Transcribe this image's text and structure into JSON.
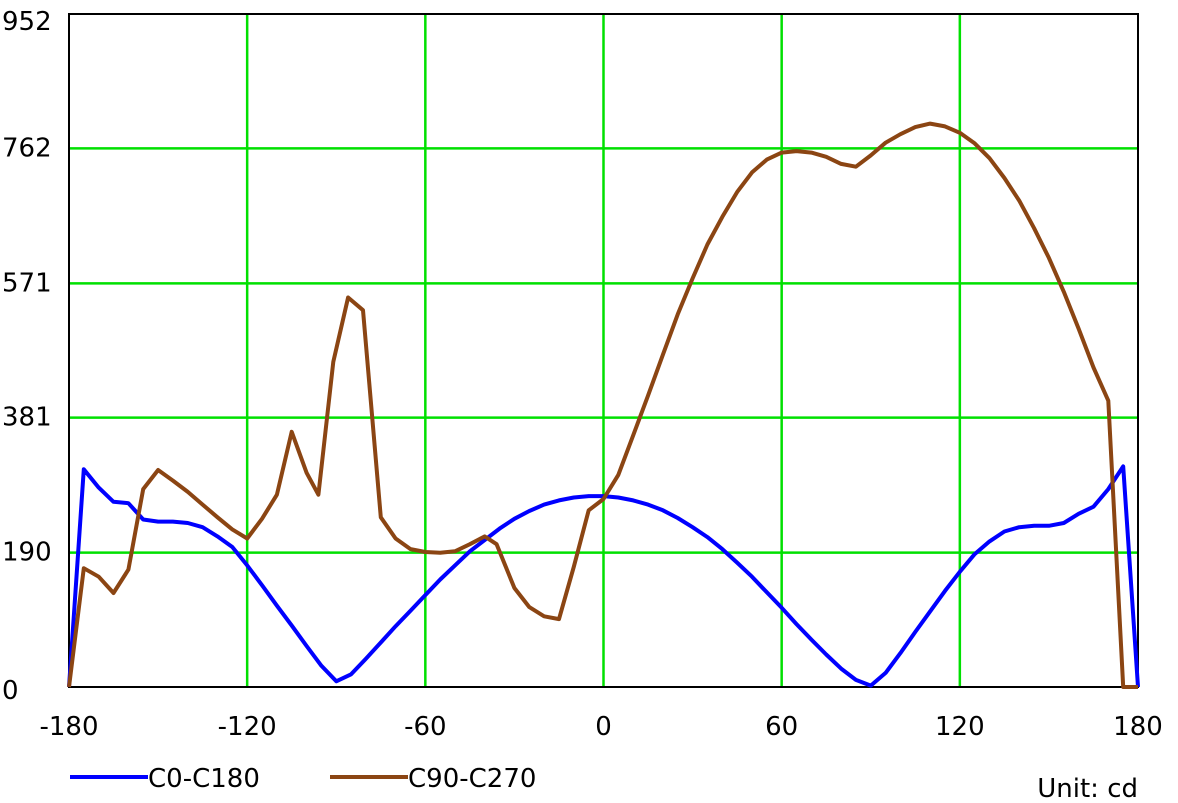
{
  "chart_data": {
    "type": "line",
    "xlim": [
      -180,
      180
    ],
    "ylim": [
      0,
      952
    ],
    "x_ticks": [
      -180,
      -120,
      -60,
      0,
      60,
      120,
      180
    ],
    "y_ticks": [
      0,
      190,
      381,
      571,
      762,
      952
    ],
    "x_tick_labels": [
      "-180",
      "-120",
      "-60",
      "0",
      "60",
      "120",
      "180"
    ],
    "y_tick_labels": [
      "0",
      "190",
      "381",
      "571",
      "762",
      "952"
    ],
    "grid": true,
    "grid_color": "#00e000",
    "unit_label": "Unit: cd",
    "legend_position": "bottom-left",
    "series": [
      {
        "name": "C0-C180",
        "color": "#0000ff",
        "points": [
          [
            -180,
            0
          ],
          [
            -175,
            308
          ],
          [
            -170,
            282
          ],
          [
            -165,
            262
          ],
          [
            -160,
            260
          ],
          [
            -155,
            237
          ],
          [
            -150,
            234
          ],
          [
            -145,
            234
          ],
          [
            -140,
            232
          ],
          [
            -135,
            226
          ],
          [
            -130,
            213
          ],
          [
            -125,
            198
          ],
          [
            -120,
            172
          ],
          [
            -115,
            144
          ],
          [
            -110,
            115
          ],
          [
            -105,
            87
          ],
          [
            -100,
            58
          ],
          [
            -95,
            30
          ],
          [
            -90,
            8
          ],
          [
            -85,
            18
          ],
          [
            -80,
            40
          ],
          [
            -75,
            63
          ],
          [
            -70,
            86
          ],
          [
            -65,
            108
          ],
          [
            -60,
            130
          ],
          [
            -55,
            152
          ],
          [
            -50,
            172
          ],
          [
            -45,
            192
          ],
          [
            -40,
            208
          ],
          [
            -35,
            224
          ],
          [
            -30,
            238
          ],
          [
            -25,
            249
          ],
          [
            -20,
            258
          ],
          [
            -15,
            264
          ],
          [
            -10,
            268
          ],
          [
            -5,
            270
          ],
          [
            0,
            270
          ],
          [
            5,
            268
          ],
          [
            10,
            264
          ],
          [
            15,
            258
          ],
          [
            20,
            250
          ],
          [
            25,
            239
          ],
          [
            30,
            226
          ],
          [
            35,
            212
          ],
          [
            40,
            195
          ],
          [
            45,
            176
          ],
          [
            50,
            156
          ],
          [
            55,
            134
          ],
          [
            60,
            112
          ],
          [
            65,
            89
          ],
          [
            70,
            67
          ],
          [
            75,
            46
          ],
          [
            80,
            26
          ],
          [
            85,
            10
          ],
          [
            90,
            2
          ],
          [
            95,
            20
          ],
          [
            100,
            48
          ],
          [
            105,
            78
          ],
          [
            110,
            107
          ],
          [
            115,
            136
          ],
          [
            120,
            163
          ],
          [
            125,
            188
          ],
          [
            130,
            206
          ],
          [
            135,
            220
          ],
          [
            140,
            226
          ],
          [
            145,
            228
          ],
          [
            150,
            228
          ],
          [
            155,
            232
          ],
          [
            160,
            245
          ],
          [
            165,
            255
          ],
          [
            170,
            280
          ],
          [
            175,
            312
          ],
          [
            180,
            0
          ]
        ]
      },
      {
        "name": "C90-C270",
        "color": "#8b4513",
        "points": [
          [
            -180,
            0
          ],
          [
            -175,
            168
          ],
          [
            -170,
            156
          ],
          [
            -165,
            133
          ],
          [
            -160,
            166
          ],
          [
            -155,
            280
          ],
          [
            -150,
            307
          ],
          [
            -145,
            292
          ],
          [
            -140,
            276
          ],
          [
            -135,
            258
          ],
          [
            -130,
            240
          ],
          [
            -125,
            223
          ],
          [
            -120,
            210
          ],
          [
            -115,
            238
          ],
          [
            -110,
            272
          ],
          [
            -105,
            361
          ],
          [
            -100,
            303
          ],
          [
            -96,
            272
          ],
          [
            -91,
            460
          ],
          [
            -86,
            551
          ],
          [
            -81,
            533
          ],
          [
            -75,
            240
          ],
          [
            -70,
            210
          ],
          [
            -65,
            195
          ],
          [
            -60,
            191
          ],
          [
            -55,
            190
          ],
          [
            -50,
            192
          ],
          [
            -45,
            202
          ],
          [
            -40,
            213
          ],
          [
            -36,
            202
          ],
          [
            -30,
            140
          ],
          [
            -25,
            113
          ],
          [
            -20,
            100
          ],
          [
            -15,
            96
          ],
          [
            -10,
            170
          ],
          [
            -5,
            250
          ],
          [
            0,
            266
          ],
          [
            5,
            300
          ],
          [
            10,
            356
          ],
          [
            15,
            412
          ],
          [
            20,
            470
          ],
          [
            25,
            527
          ],
          [
            30,
            578
          ],
          [
            35,
            626
          ],
          [
            40,
            665
          ],
          [
            45,
            700
          ],
          [
            50,
            728
          ],
          [
            55,
            746
          ],
          [
            60,
            756
          ],
          [
            65,
            758
          ],
          [
            70,
            756
          ],
          [
            75,
            750
          ],
          [
            80,
            740
          ],
          [
            85,
            736
          ],
          [
            90,
            752
          ],
          [
            95,
            770
          ],
          [
            100,
            782
          ],
          [
            105,
            792
          ],
          [
            110,
            797
          ],
          [
            115,
            793
          ],
          [
            120,
            784
          ],
          [
            125,
            769
          ],
          [
            130,
            748
          ],
          [
            135,
            720
          ],
          [
            140,
            688
          ],
          [
            145,
            649
          ],
          [
            150,
            607
          ],
          [
            155,
            559
          ],
          [
            160,
            507
          ],
          [
            165,
            452
          ],
          [
            170,
            405
          ],
          [
            175,
            0
          ],
          [
            180,
            0
          ]
        ]
      }
    ]
  }
}
